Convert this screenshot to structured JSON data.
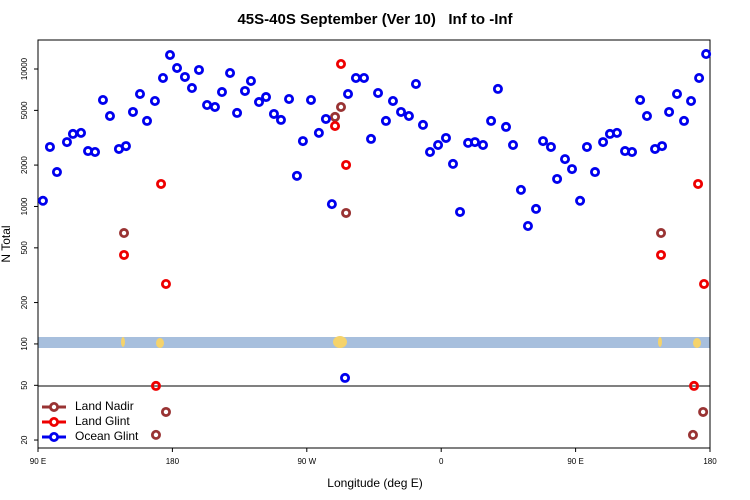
{
  "chart_data": {
    "type": "scatter",
    "title": "45S-40S September (Ver 10)   Inf to -Inf",
    "x_label": "Longitude (deg E)",
    "y_label": "N Total",
    "y_log": true,
    "legend": "bottom-left",
    "xlim": [
      90,
      540
    ],
    "xticks": [
      {
        "value": 90,
        "label": "90 E"
      },
      180,
      {
        "value": 270,
        "label": "90 W"
      },
      {
        "value": 360,
        "label": "0"
      },
      {
        "value": 450,
        "label": "90 E"
      },
      {
        "value": 540,
        "label": "180"
      }
    ],
    "ylim": [
      17.5,
      16250
    ],
    "yticks": [
      20,
      50,
      100,
      200,
      500,
      1000,
      2000,
      5000,
      10000
    ],
    "series": [
      {
        "name": "Land Nadir",
        "color": "#993333",
        "x": [
          147.6,
          292.9,
          288.9,
          296.3,
          175.7,
          169.0,
          507.2,
          535.4,
          528.6
        ],
        "values": [
          641,
          5290,
          4480,
          897,
          32,
          21.8,
          641,
          32,
          21.8
        ]
      },
      {
        "name": "Land Glint",
        "color": "#ee0000",
        "x": [
          147.6,
          172.4,
          175.7,
          169.0,
          292.9,
          288.9,
          296.3,
          507.2,
          532.0,
          536.0,
          529.3
        ],
        "values": [
          444,
          1458,
          273,
          49.5,
          10870,
          3850,
          2004,
          444,
          1458,
          273,
          49.5
        ]
      },
      {
        "name": "Ocean Glint",
        "color": "#0000ee",
        "x": [
          93.3,
          98.0,
          102.7,
          109.4,
          113.4,
          118.8,
          123.5,
          128.2,
          133.5,
          138.2,
          144.2,
          148.9,
          153.6,
          158.3,
          163.0,
          168.3,
          173.7,
          178.4,
          183.1,
          188.4,
          193.1,
          197.8,
          203.2,
          208.5,
          213.2,
          218.6,
          223.3,
          228.6,
          232.6,
          238.0,
          242.7,
          248.0,
          252.7,
          258.1,
          263.4,
          267.4,
          272.8,
          278.1,
          282.8,
          286.8,
          295.6,
          297.6,
          302.9,
          308.3,
          313.0,
          317.7,
          323.0,
          327.7,
          333.1,
          338.4,
          343.1,
          347.8,
          352.5,
          357.9,
          363.2,
          367.9,
          372.6,
          378.0,
          382.6,
          388.0,
          393.4,
          398.0,
          403.4,
          408.1,
          413.4,
          418.1,
          423.5,
          428.2,
          433.5,
          437.6,
          442.9,
          447.6,
          453.0,
          457.6,
          463.0,
          468.4,
          473.0,
          477.7,
          483.1,
          487.8,
          493.2,
          497.8,
          503.2,
          507.9,
          512.6,
          517.9,
          522.6,
          527.3,
          532.7,
          537.4
        ],
        "values": [
          1100,
          2710,
          1780,
          2940,
          3370,
          3430,
          2530,
          2490,
          5950,
          4550,
          2620,
          2750,
          4870,
          6580,
          4190,
          5850,
          8600,
          12640,
          10170,
          8750,
          7270,
          9840,
          5470,
          5290,
          6800,
          9350,
          4790,
          6920,
          8180,
          5750,
          6250,
          4710,
          4260,
          6050,
          1670,
          2990,
          5950,
          3430,
          4330,
          1040,
          56.6,
          6580,
          8600,
          8600,
          3100,
          6690,
          4190,
          5850,
          4870,
          4550,
          7780,
          3920,
          2490,
          2800,
          3150,
          2040,
          912,
          2900,
          2940,
          2800,
          4190,
          7160,
          3790,
          2800,
          1320,
          721,
          960,
          2990,
          2710,
          1585,
          2210,
          1870,
          1100,
          2710,
          1780,
          2940,
          3370,
          3430,
          2530,
          2490,
          5950,
          4550,
          2620,
          2750,
          4870,
          6580,
          4190,
          5850,
          8600,
          12850
        ]
      }
    ]
  }
}
